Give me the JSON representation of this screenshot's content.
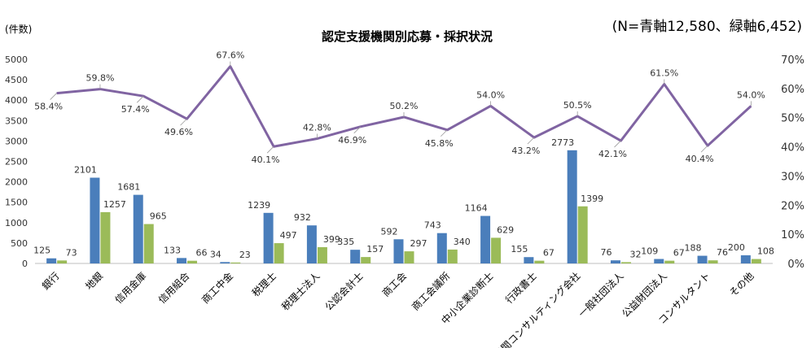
{
  "chart_data": {
    "type": "bar+line",
    "title": "認定支援機関別応募・採択状況",
    "note": "(N=青軸12,580、緑軸6,452)",
    "ylabel_left": "(件数)",
    "ylim_left": [
      0,
      5000
    ],
    "yticks_left": [
      0,
      500,
      1000,
      1500,
      2000,
      2500,
      3000,
      3500,
      4000,
      4500,
      5000
    ],
    "ylim_right": [
      0,
      70
    ],
    "yticks_right": [
      "0%",
      "10%",
      "20%",
      "30%",
      "40%",
      "50%",
      "60%",
      "70%"
    ],
    "grid": false,
    "categories": [
      "銀行",
      "地銀",
      "信用金庫",
      "信用組合",
      "商工中金",
      "税理士",
      "税理士法人",
      "公認会計士",
      "商工会",
      "商工会議所",
      "中小企業診断士",
      "行政書士",
      "民間コンサルティング会社",
      "一般社団法人",
      "公益財団法人",
      "コンサルタント",
      "その他"
    ],
    "series": [
      {
        "type": "bar",
        "axis": "left",
        "color": "#4a7ebb",
        "values": [
          125,
          2101,
          1681,
          133,
          34,
          1239,
          932,
          335,
          592,
          743,
          1164,
          155,
          2773,
          76,
          109,
          188,
          200
        ]
      },
      {
        "type": "bar",
        "axis": "left",
        "color": "#9bbb59",
        "values": [
          73,
          1257,
          965,
          66,
          23,
          497,
          399,
          157,
          297,
          340,
          629,
          67,
          1399,
          32,
          67,
          76,
          108
        ]
      },
      {
        "type": "line",
        "axis": "right",
        "unit": "%",
        "color": "#8064a2",
        "values": [
          58.4,
          59.8,
          57.4,
          49.6,
          67.6,
          40.1,
          42.8,
          46.9,
          50.2,
          45.8,
          54.0,
          43.2,
          50.5,
          42.1,
          61.5,
          40.4,
          54.0
        ]
      }
    ]
  }
}
